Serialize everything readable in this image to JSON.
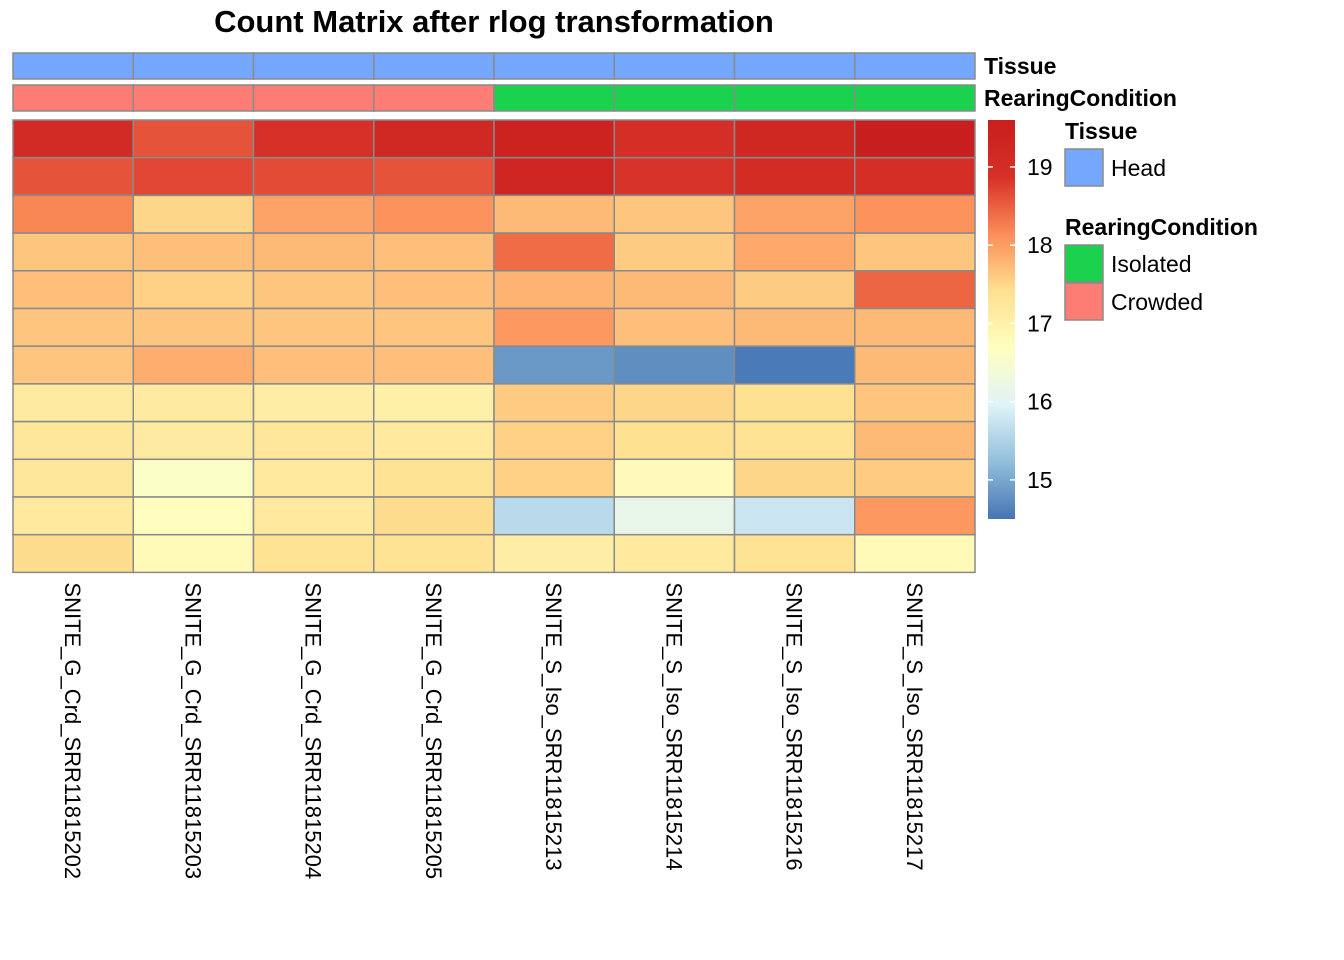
{
  "chart_data": {
    "type": "heatmap",
    "title": "Count Matrix after rlog transformation",
    "columns": [
      "SNITE_G_Crd_SRR11815202",
      "SNITE_G_Crd_SRR11815203",
      "SNITE_G_Crd_SRR11815204",
      "SNITE_G_Crd_SRR11815205",
      "SNITE_S_Iso_SRR11815213",
      "SNITE_S_Iso_SRR11815214",
      "SNITE_S_Iso_SRR11815216",
      "SNITE_S_Iso_SRR11815217"
    ],
    "values": [
      [
        19.1,
        18.6,
        18.9,
        19.2,
        19.4,
        18.95,
        19.25,
        19.6
      ],
      [
        18.6,
        18.7,
        18.65,
        18.6,
        19.3,
        18.85,
        19.05,
        18.95
      ],
      [
        18.2,
        17.5,
        17.95,
        18.1,
        17.75,
        17.65,
        17.95,
        18.1
      ],
      [
        17.65,
        17.7,
        17.75,
        17.7,
        18.4,
        17.6,
        17.9,
        17.65
      ],
      [
        17.7,
        17.55,
        17.65,
        17.7,
        17.8,
        17.75,
        17.6,
        18.45
      ],
      [
        17.65,
        17.65,
        17.65,
        17.65,
        18.05,
        17.7,
        17.75,
        17.75
      ],
      [
        17.65,
        17.85,
        17.7,
        17.7,
        14.85,
        14.75,
        14.55,
        17.75
      ],
      [
        17.15,
        17.15,
        17.1,
        17.05,
        17.6,
        17.5,
        17.4,
        17.65
      ],
      [
        17.25,
        17.15,
        17.25,
        17.2,
        17.55,
        17.4,
        17.35,
        17.75
      ],
      [
        17.25,
        16.6,
        17.2,
        17.35,
        17.55,
        16.75,
        17.5,
        17.6
      ],
      [
        17.2,
        16.7,
        17.2,
        17.45,
        15.6,
        16.15,
        15.75,
        18.05
      ],
      [
        17.45,
        16.8,
        17.35,
        17.35,
        17.1,
        17.2,
        17.35,
        16.8
      ]
    ],
    "colorbar": {
      "min": 14.5,
      "max": 19.6,
      "ticks": [
        15,
        16,
        17,
        18,
        19
      ]
    },
    "annotations": [
      {
        "name": "Tissue",
        "values": [
          "Head",
          "Head",
          "Head",
          "Head",
          "Head",
          "Head",
          "Head",
          "Head"
        ]
      },
      {
        "name": "RearingCondition",
        "values": [
          "Crowded",
          "Crowded",
          "Crowded",
          "Crowded",
          "Isolated",
          "Isolated",
          "Isolated",
          "Isolated"
        ]
      }
    ],
    "legends": [
      {
        "title": "Tissue",
        "items": [
          {
            "label": "Head",
            "color": "#74a7fe"
          }
        ]
      },
      {
        "title": "RearingCondition",
        "items": [
          {
            "label": "Isolated",
            "color": "#1bd24f"
          },
          {
            "label": "Crowded",
            "color": "#fd7c74"
          }
        ]
      }
    ],
    "colors": {
      "cell_border": "#8a8a8a",
      "scale": [
        "#4575b4",
        "#91bfdb",
        "#e0f3f8",
        "#ffffbf",
        "#fee090",
        "#fc8d59",
        "#d73027",
        "#c81e1e"
      ]
    }
  }
}
